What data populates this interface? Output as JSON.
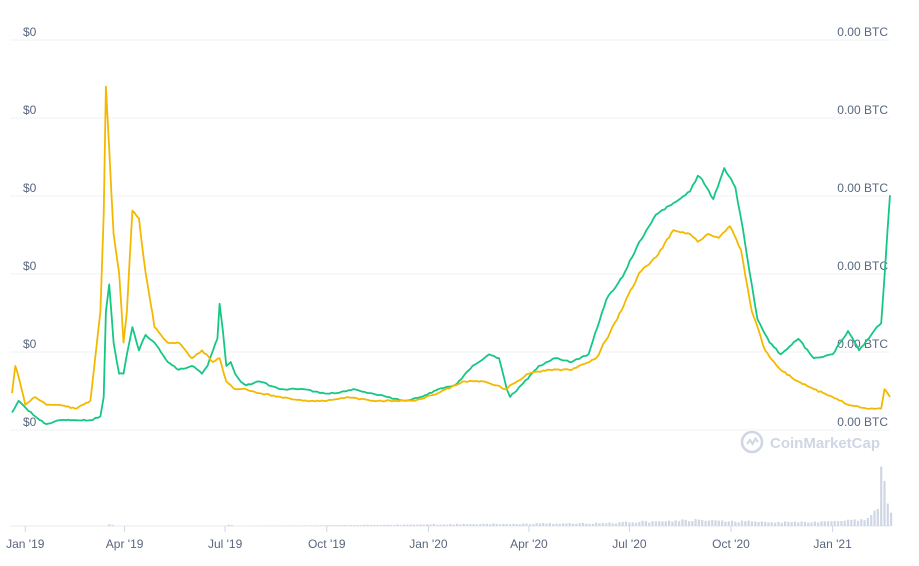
{
  "watermark": "CoinMarketCap",
  "chart_data": {
    "type": "line",
    "colors": {
      "price_usd": "#16c784",
      "price_btc": "#f3b900",
      "volume": "#cfd6e4",
      "grid": "#eff2f5",
      "text": "#58667e"
    },
    "x_tick_labels": [
      "Jan '19",
      "Apr '19",
      "Jul '19",
      "Oct '19",
      "Jan '20",
      "Apr '20",
      "Jul '20",
      "Oct '20",
      "Jan '21"
    ],
    "x_tick_dates": [
      "2019-01-01",
      "2019-04-01",
      "2019-07-01",
      "2019-10-01",
      "2020-01-01",
      "2020-04-01",
      "2020-07-01",
      "2020-10-01",
      "2021-01-01"
    ],
    "x_range": [
      "2018-12-20",
      "2021-02-22"
    ],
    "y_left_tick_labels": [
      "$0",
      "$0",
      "$0",
      "$0",
      "$0",
      "$0"
    ],
    "y_right_tick_labels": [
      "0.00 BTC",
      "0.00 BTC",
      "0.00 BTC",
      "0.00 BTC",
      "0.00 BTC",
      "0.00 BTC"
    ],
    "ylim": [
      0,
      100
    ],
    "grid": true,
    "series": [
      {
        "key": "price_usd",
        "color": "#16c784",
        "x": [
          "2018-12-20",
          "2018-12-26",
          "2019-01-02",
          "2019-01-10",
          "2019-01-20",
          "2019-02-01",
          "2019-02-15",
          "2019-03-01",
          "2019-03-10",
          "2019-03-13",
          "2019-03-15",
          "2019-03-18",
          "2019-03-22",
          "2019-03-27",
          "2019-03-31",
          "2019-04-03",
          "2019-04-08",
          "2019-04-14",
          "2019-04-20",
          "2019-04-28",
          "2019-05-10",
          "2019-05-20",
          "2019-06-01",
          "2019-06-10",
          "2019-06-15",
          "2019-06-20",
          "2019-06-24",
          "2019-06-26",
          "2019-06-29",
          "2019-07-02",
          "2019-07-06",
          "2019-07-10",
          "2019-07-15",
          "2019-07-20",
          "2019-08-01",
          "2019-08-20",
          "2019-09-10",
          "2019-09-25",
          "2019-10-10",
          "2019-10-25",
          "2019-11-10",
          "2019-11-25",
          "2019-12-10",
          "2019-12-25",
          "2020-01-10",
          "2020-01-25",
          "2020-02-10",
          "2020-02-25",
          "2020-03-05",
          "2020-03-12",
          "2020-03-15",
          "2020-03-25",
          "2020-04-10",
          "2020-04-25",
          "2020-05-10",
          "2020-05-25",
          "2020-06-10",
          "2020-06-25",
          "2020-07-10",
          "2020-07-25",
          "2020-08-10",
          "2020-08-25",
          "2020-09-01",
          "2020-09-05",
          "2020-09-15",
          "2020-09-25",
          "2020-10-05",
          "2020-10-12",
          "2020-10-18",
          "2020-10-25",
          "2020-11-05",
          "2020-11-15",
          "2020-12-01",
          "2020-12-15",
          "2021-01-01",
          "2021-01-15",
          "2021-01-25",
          "2021-02-05",
          "2021-02-10",
          "2021-02-14",
          "2021-02-17",
          "2021-02-20",
          "2021-02-22"
        ],
        "values": [
          4,
          7,
          5,
          3,
          1,
          2,
          2,
          2,
          3,
          8,
          30,
          37,
          22,
          14,
          14,
          19,
          26,
          20,
          24,
          22,
          17,
          15,
          16,
          14,
          16,
          20,
          23,
          32,
          25,
          16,
          17,
          14,
          12,
          11,
          12,
          10,
          10,
          9,
          9,
          10,
          9,
          8,
          7,
          8,
          10,
          11,
          16,
          19,
          18,
          10,
          8,
          11,
          16,
          18,
          17,
          19,
          33,
          39,
          48,
          55,
          58,
          61,
          65,
          64,
          59,
          67,
          62,
          51,
          40,
          28,
          22,
          19,
          23,
          18,
          19,
          25,
          20,
          24,
          26,
          27,
          39,
          52,
          60
        ]
      },
      {
        "key": "price_btc",
        "color": "#f3b900",
        "x": [
          "2018-12-20",
          "2018-12-23",
          "2018-12-27",
          "2019-01-01",
          "2019-01-10",
          "2019-01-20",
          "2019-02-01",
          "2019-02-15",
          "2019-03-01",
          "2019-03-10",
          "2019-03-13",
          "2019-03-15",
          "2019-03-18",
          "2019-03-22",
          "2019-03-27",
          "2019-03-31",
          "2019-04-03",
          "2019-04-08",
          "2019-04-14",
          "2019-04-20",
          "2019-04-28",
          "2019-05-10",
          "2019-05-20",
          "2019-06-01",
          "2019-06-10",
          "2019-06-20",
          "2019-06-26",
          "2019-07-02",
          "2019-07-10",
          "2019-07-20",
          "2019-08-01",
          "2019-08-20",
          "2019-09-10",
          "2019-10-01",
          "2019-10-20",
          "2019-11-10",
          "2019-12-01",
          "2019-12-20",
          "2020-01-10",
          "2020-02-01",
          "2020-02-20",
          "2020-03-12",
          "2020-03-15",
          "2020-04-01",
          "2020-04-20",
          "2020-05-10",
          "2020-06-01",
          "2020-06-20",
          "2020-07-10",
          "2020-07-25",
          "2020-08-10",
          "2020-08-25",
          "2020-09-01",
          "2020-09-10",
          "2020-09-20",
          "2020-09-30",
          "2020-10-10",
          "2020-10-20",
          "2020-11-01",
          "2020-11-15",
          "2020-12-01",
          "2020-12-15",
          "2021-01-01",
          "2021-01-15",
          "2021-02-01",
          "2021-02-10",
          "2021-02-14",
          "2021-02-17",
          "2021-02-22"
        ],
        "values": [
          9,
          16,
          12,
          6,
          8,
          6,
          6,
          5,
          7,
          30,
          55,
          88,
          72,
          50,
          40,
          22,
          30,
          56,
          54,
          40,
          26,
          22,
          22,
          18,
          20,
          17,
          18,
          12,
          10,
          10,
          9,
          8,
          7,
          7,
          8,
          7,
          7,
          7,
          9,
          12,
          12,
          10,
          11,
          14,
          15,
          15,
          18,
          28,
          40,
          44,
          51,
          50,
          48,
          50,
          49,
          52,
          46,
          30,
          20,
          15,
          12,
          10,
          8,
          6,
          5,
          5,
          5,
          10,
          8
        ]
      }
    ],
    "volume": {
      "color": "#cfd6e4",
      "x": [
        "2018-12-20",
        "2019-03-15",
        "2019-03-18",
        "2019-03-21",
        "2019-07-01",
        "2019-07-04",
        "2019-07-07",
        "2020-06-15",
        "2020-07-15",
        "2020-08-15",
        "2020-09-15",
        "2020-10-15",
        "2020-11-15",
        "2020-12-15",
        "2021-01-01",
        "2021-01-15",
        "2021-01-25",
        "2021-02-01",
        "2021-02-06",
        "2021-02-10",
        "2021-02-12",
        "2021-02-14",
        "2021-02-16",
        "2021-02-18",
        "2021-02-20",
        "2021-02-22"
      ],
      "values": [
        0,
        0,
        4,
        0,
        0,
        3,
        0,
        4,
        6,
        8,
        7,
        6,
        5,
        5,
        6,
        8,
        7,
        10,
        16,
        22,
        48,
        100,
        70,
        38,
        25,
        15
      ]
    }
  }
}
